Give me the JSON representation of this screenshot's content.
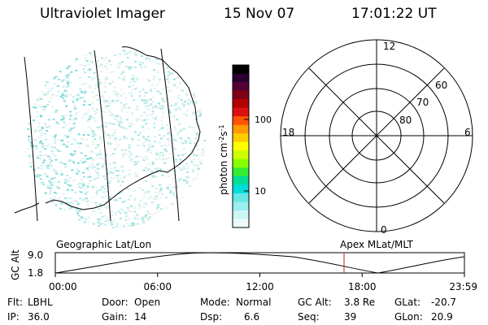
{
  "header": {
    "instrument": "Ultraviolet Imager",
    "date": "15 Nov 07",
    "time": "17:01:22 UT"
  },
  "colorbar": {
    "label": "photon cm",
    "label_sup1": "-2",
    "label_mid": "s",
    "label_sup2": "-1",
    "ticks": [
      "100",
      "10"
    ],
    "colors": [
      "#000000",
      "#2a0033",
      "#550033",
      "#800018",
      "#b30000",
      "#dd1010",
      "#ff5500",
      "#ff9900",
      "#ffcc00",
      "#ffff00",
      "#ccff00",
      "#88ff00",
      "#33ee33",
      "#00dd99",
      "#00dddd",
      "#66e6e6",
      "#99eeee",
      "#ccf5f5",
      "#eefafa"
    ]
  },
  "polar": {
    "labels": {
      "top": "12",
      "left": "18",
      "right": "6",
      "bottom": "0",
      "ring60": "60",
      "ring70": "70",
      "ring80": "80"
    }
  },
  "orbit_plot": {
    "ylabel": "GC Alt",
    "yticks": [
      "9.0",
      "1.8"
    ],
    "left_title": "Geographic Lat/Lon",
    "right_title": "Apex MLat/MLT",
    "xticks": [
      "00:00",
      "06:00",
      "12:00",
      "18:00",
      "23:59"
    ],
    "current_marker_time": "17:01"
  },
  "info": {
    "row1": [
      {
        "label": "Flt:",
        "value": "LBHL"
      },
      {
        "label": "Door:",
        "value": "Open"
      },
      {
        "label": "Mode:",
        "value": "Normal"
      },
      {
        "label": "GC Alt:",
        "value": "3.8 Re"
      },
      {
        "label": "GLat:",
        "value": "-20.7"
      }
    ],
    "row2": [
      {
        "label": "IP:",
        "value": "36.0"
      },
      {
        "label": "Gain:",
        "value": "14"
      },
      {
        "label": "Dsp:",
        "value": "6.6"
      },
      {
        "label": "Seq:",
        "value": "39"
      },
      {
        "label": "GLon:",
        "value": "20.9"
      }
    ]
  }
}
